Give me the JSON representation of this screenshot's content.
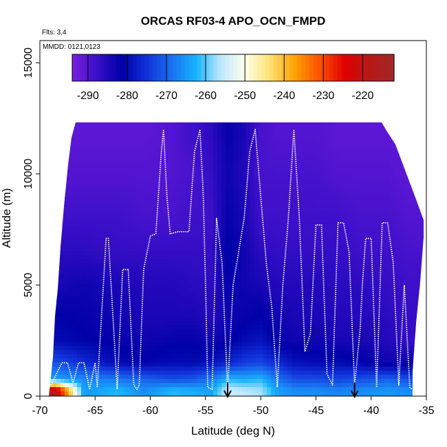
{
  "chart_data": {
    "type": "heatmap",
    "title": "ORCAS RF03-4 APO_OCN_FMPD",
    "annotations": {
      "flights": "Flts: 3,4",
      "dates": "MMDD: 0121,0123"
    },
    "xlabel": "Latitude (deg N)",
    "ylabel": "Altitude (m)",
    "xlim": [
      -70,
      -35
    ],
    "ylim": [
      0,
      16000
    ],
    "xticks": [
      "-70",
      "-65",
      "-60",
      "-55",
      "-50",
      "-45",
      "-40",
      "-35"
    ],
    "yticks": [
      "0",
      "5000",
      "10000",
      "15000"
    ],
    "colorbar": {
      "range": [
        -294,
        -212
      ],
      "ticks": [
        "-290",
        "-280",
        "-270",
        "-260",
        "-250",
        "-240",
        "-230",
        "-220"
      ],
      "colors": [
        "#7b1fe0",
        "#3a0fc8",
        "#0000a8",
        "#1030d8",
        "#1a6ff0",
        "#15b4ff",
        "#bfe8ff",
        "#ffffe8",
        "#ffe070",
        "#ffa000",
        "#ff5000",
        "#e00000",
        "#b81818",
        "#a02828"
      ]
    },
    "field": {
      "x": [
        -68.5,
        -66,
        -63,
        -60.5,
        -58,
        -56,
        -54.5,
        -53,
        -51.5,
        -50,
        -48.5,
        -47,
        -45,
        -43,
        -41,
        -38.5,
        -36.5
      ],
      "y": [
        250,
        750,
        1500,
        2500,
        3500,
        5000,
        6500,
        8000,
        10000,
        11800
      ],
      "z": [
        [
          -218,
          -265,
          -262,
          -266,
          -262,
          -263,
          -264,
          -255,
          -256,
          -257,
          -264,
          -266,
          -266,
          -267,
          -266,
          -265,
          -266
        ],
        [
          -264,
          -266,
          -268,
          -270,
          -272,
          -271,
          -268,
          -262,
          -263,
          -262,
          -268,
          -272,
          -272,
          -273,
          -272,
          -270,
          -272
        ],
        [
          -272,
          -276,
          -280,
          -281,
          -280,
          -280,
          -279,
          -277,
          -274,
          -273,
          -276,
          -279,
          -280,
          -280,
          -281,
          -283,
          -283
        ],
        [
          -280,
          -281,
          -282,
          -283,
          -282,
          -282,
          -283,
          -282,
          -280,
          -279,
          -282,
          -283,
          -283,
          -284,
          -284,
          -285,
          -287
        ],
        [
          -281,
          -282,
          -283,
          -284,
          -284,
          -284,
          -285,
          -283,
          -282,
          -281,
          -283,
          -284,
          -284,
          -285,
          -285,
          -286,
          -287
        ],
        [
          -284,
          -283,
          -284,
          -285,
          -285,
          -286,
          -286,
          -282,
          -283,
          -284,
          -285,
          -285,
          -285,
          -286,
          -286,
          -287,
          -288
        ],
        [
          -286,
          -286,
          -287,
          -287,
          -287,
          -287,
          -287,
          -281,
          -283,
          -286,
          -287,
          -287,
          -287,
          -287,
          -288,
          -288,
          -289
        ],
        [
          -288,
          -288,
          -288,
          -289,
          -289,
          -288,
          -288,
          -282,
          -284,
          -288,
          -288,
          -288,
          -288,
          -288,
          -289,
          -289,
          -290
        ],
        [
          -290,
          -290,
          -290,
          -290,
          -290,
          -289,
          -287,
          -283,
          -285,
          -289,
          -289,
          -289,
          -289,
          -290,
          -290,
          -290,
          -291
        ],
        [
          -291,
          -291,
          -291,
          -291,
          -290,
          -288,
          -286,
          -282,
          -284,
          -289,
          -290,
          -290,
          -290,
          -291,
          -291,
          -291,
          -291
        ]
      ]
    },
    "flight_track": {
      "lat": [
        -69,
        -68,
        -67.5,
        -67,
        -66.5,
        -66,
        -65.5,
        -65,
        -64.8,
        -64,
        -63.8,
        -63,
        -62.5,
        -62,
        -61.5,
        -61.2,
        -61,
        -60.6,
        -60,
        -59.5,
        -59,
        -58.8,
        -58.5,
        -58.2,
        -57.5,
        -56.5,
        -56,
        -55.5,
        -55.2,
        -55,
        -54.8,
        -54.4,
        -54,
        -53.5,
        -53,
        -52.5,
        -51.5,
        -51,
        -50.5,
        -50,
        -49.5,
        -49,
        -48.5,
        -48,
        -47.5,
        -47,
        -46.5,
        -46,
        -45.5,
        -45,
        -44.5,
        -44,
        -43.5,
        -43,
        -42.5,
        -42,
        -41.5,
        -41,
        -40.8,
        -40.5,
        -40,
        -39.5,
        -39,
        -38.5,
        -38,
        -37.5,
        -37,
        -36.5,
        -36.3
      ],
      "alt": [
        500,
        1500,
        1500,
        600,
        1500,
        1500,
        300,
        1500,
        400,
        7100,
        7100,
        300,
        5700,
        5700,
        500,
        300,
        500,
        5700,
        7200,
        7300,
        11000,
        12000,
        9000,
        7300,
        7400,
        7400,
        11000,
        12000,
        9000,
        5000,
        400,
        300,
        8000,
        6000,
        300,
        5000,
        8000,
        11000,
        12000,
        9000,
        6000,
        4000,
        400,
        5000,
        8000,
        12000,
        8000,
        2000,
        2800,
        7700,
        7700,
        1000,
        500,
        7800,
        7800,
        6500,
        500,
        3000,
        5000,
        7100,
        7100,
        400,
        7800,
        7800,
        6000,
        500,
        5000,
        400,
        300
      ]
    },
    "markers": [
      -53,
      -41.5
    ],
    "grid": false,
    "legend": "colorbar-top"
  }
}
